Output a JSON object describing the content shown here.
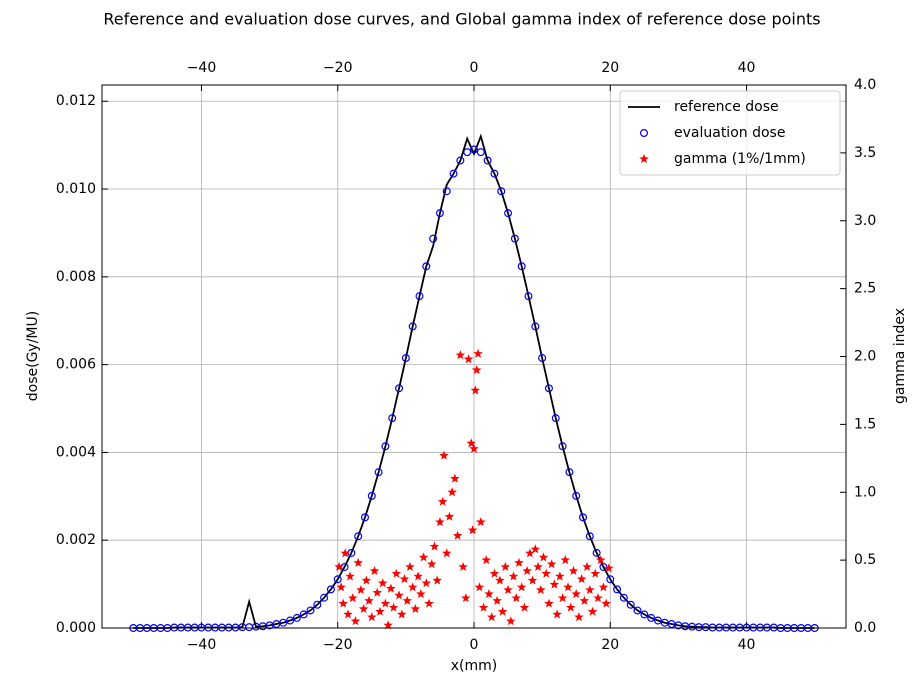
{
  "chart_data": {
    "type": "line",
    "title": "Reference and evaluation dose curves, and Global gamma index of reference dose points",
    "x_label": "x(mm)",
    "y_label": "dose(Gy/MU)",
    "y2_label": "gamma index",
    "xlim": [
      -54.6,
      54.6
    ],
    "xticks": [
      {
        "value": -40,
        "label": "−40"
      },
      {
        "value": -20,
        "label": "−20"
      },
      0,
      20,
      40
    ],
    "ylim": [
      0,
      0.01237
    ],
    "yticks": [
      {
        "value": 0,
        "label": "0.000"
      },
      {
        "value": 0.002,
        "label": "0.002"
      },
      {
        "value": 0.004,
        "label": "0.004"
      },
      {
        "value": 0.006,
        "label": "0.006"
      },
      {
        "value": 0.008,
        "label": "0.008"
      },
      {
        "value": 0.01,
        "label": "0.010"
      },
      {
        "value": 0.012,
        "label": "0.012"
      }
    ],
    "y2lim": [
      0,
      4
    ],
    "y2ticks": [
      {
        "value": 0,
        "label": "0.0"
      },
      {
        "value": 0.5,
        "label": "0.5"
      },
      {
        "value": 1,
        "label": "1.0"
      },
      {
        "value": 1.5,
        "label": "1.5"
      },
      {
        "value": 2,
        "label": "2.0"
      },
      {
        "value": 2.5,
        "label": "2.5"
      },
      {
        "value": 3,
        "label": "3.0"
      },
      {
        "value": 3.5,
        "label": "3.5"
      },
      {
        "value": 4,
        "label": "4.0"
      }
    ],
    "grid": true,
    "legend": "upper right",
    "x": [
      -50,
      -49,
      -48,
      -47,
      -46,
      -45,
      -44,
      -43,
      -42,
      -41,
      -40,
      -39,
      -38,
      -37,
      -36,
      -35,
      -34,
      -33,
      -32,
      -31,
      -30,
      -29,
      -28,
      -27,
      -26,
      -25,
      -24,
      -23,
      -22,
      -21,
      -20,
      -19,
      -18,
      -17,
      -16,
      -15,
      -14,
      -13,
      -12,
      -11,
      -10,
      -9,
      -8,
      -7,
      -6,
      -5,
      -4,
      -3,
      -2,
      -1,
      0,
      1,
      2,
      3,
      4,
      5,
      6,
      7,
      8,
      9,
      10,
      11,
      12,
      13,
      14,
      15,
      16,
      17,
      18,
      19,
      20,
      21,
      22,
      23,
      24,
      25,
      26,
      27,
      28,
      29,
      30,
      31,
      32,
      33,
      34,
      35,
      36,
      37,
      38,
      39,
      40,
      41,
      42,
      43,
      44,
      45,
      46,
      47,
      48,
      49,
      50
    ],
    "series": [
      {
        "name": "reference dose",
        "color": "#000000",
        "marker": "line",
        "values": [
          0,
          0,
          0,
          0,
          0,
          0,
          1e-05,
          1e-05,
          1e-05,
          1e-05,
          1e-05,
          1e-05,
          1e-05,
          1e-05,
          1e-05,
          1e-05,
          2e-05,
          0.0006,
          3e-05,
          4e-05,
          6e-05,
          9e-05,
          0.00012,
          0.00017,
          0.00023,
          0.00031,
          0.0004,
          0.00053,
          0.00069,
          0.00088,
          0.00111,
          0.00139,
          0.00171,
          0.00209,
          0.00252,
          0.00301,
          0.00355,
          0.00414,
          0.00478,
          0.00546,
          0.00615,
          0.00687,
          0.00756,
          0.00824,
          0.0087,
          0.00945,
          0.0101,
          0.01035,
          0.01065,
          0.01115,
          0.0108,
          0.0112,
          0.01065,
          0.01035,
          0.00995,
          0.00945,
          0.00887,
          0.00824,
          0.00756,
          0.00687,
          0.00615,
          0.00546,
          0.00478,
          0.00414,
          0.00355,
          0.00301,
          0.00252,
          0.00209,
          0.00171,
          0.00139,
          0.00111,
          0.00088,
          0.00069,
          0.00053,
          0.0004,
          0.00031,
          0.00023,
          0.00017,
          0.00012,
          9e-05,
          6e-05,
          4e-05,
          3e-05,
          2e-05,
          2e-05,
          1e-05,
          1e-05,
          1e-05,
          1e-05,
          1e-05,
          1e-05,
          1e-05,
          1e-05,
          1e-05,
          1e-05,
          0,
          0,
          0,
          0,
          0,
          0
        ]
      },
      {
        "name": "evaluation dose",
        "color": "#0000ff",
        "marker": "circle",
        "values": [
          0,
          0,
          0,
          0,
          0,
          0,
          1e-05,
          1e-05,
          1e-05,
          1e-05,
          1e-05,
          1e-05,
          1e-05,
          1e-05,
          1e-05,
          1e-05,
          2e-05,
          2e-05,
          3e-05,
          4e-05,
          6e-05,
          9e-05,
          0.00012,
          0.00017,
          0.00023,
          0.00031,
          0.0004,
          0.00053,
          0.00069,
          0.00088,
          0.00111,
          0.00139,
          0.00171,
          0.00209,
          0.00252,
          0.00301,
          0.00355,
          0.00414,
          0.00478,
          0.00546,
          0.00615,
          0.00687,
          0.00756,
          0.00824,
          0.00887,
          0.00945,
          0.00995,
          0.01035,
          0.01065,
          0.01084,
          0.0109,
          0.01084,
          0.01065,
          0.01035,
          0.00995,
          0.00945,
          0.00887,
          0.00824,
          0.00756,
          0.00687,
          0.00615,
          0.00546,
          0.00478,
          0.00414,
          0.00355,
          0.00301,
          0.00252,
          0.00209,
          0.00171,
          0.00139,
          0.00111,
          0.00088,
          0.00069,
          0.00053,
          0.0004,
          0.00031,
          0.00023,
          0.00017,
          0.00012,
          9e-05,
          6e-05,
          4e-05,
          3e-05,
          2e-05,
          2e-05,
          1e-05,
          1e-05,
          1e-05,
          1e-05,
          1e-05,
          1e-05,
          1e-05,
          1e-05,
          1e-05,
          1e-05,
          0,
          0,
          0,
          0,
          0,
          0
        ]
      },
      {
        "name": "gamma (1%/1mm)",
        "color": "#ff0000",
        "marker": "star",
        "axis": "y2",
        "x": [
          -19.8,
          -19.5,
          -19.2,
          -18.9,
          -18.5,
          -18.2,
          -17.8,
          -17.4,
          -17,
          -16.6,
          -16.2,
          -15.8,
          -15.4,
          -15,
          -14.6,
          -14.2,
          -13.8,
          -13.4,
          -13,
          -12.6,
          -12.2,
          -11.8,
          -11.4,
          -11,
          -10.6,
          -10.2,
          -9.8,
          -9.4,
          -9,
          -8.6,
          -8.2,
          -7.8,
          -7.4,
          -7,
          -6.6,
          -6.2,
          -5.8,
          -5.4,
          -5,
          -4.6,
          -4.4,
          -4,
          -3.6,
          -3.2,
          -2.8,
          -2.4,
          -2,
          -1.6,
          -1.2,
          -0.8,
          -0.4,
          -0.2,
          0,
          0.2,
          0.4,
          0.6,
          0.8,
          1,
          1.4,
          1.8,
          2.2,
          2.6,
          3,
          3.4,
          3.8,
          4.2,
          4.6,
          5,
          5.4,
          5.8,
          6.2,
          6.6,
          7,
          7.4,
          7.8,
          8.2,
          8.6,
          9,
          9.4,
          9.8,
          10.2,
          10.6,
          11,
          11.4,
          11.8,
          12.2,
          12.6,
          13,
          13.4,
          13.8,
          14.2,
          14.6,
          15,
          15.4,
          15.8,
          16.2,
          16.6,
          17,
          17.4,
          17.8,
          18.2,
          18.6,
          19,
          19.4,
          19.8
        ],
        "values": [
          0.45,
          0.3,
          0.18,
          0.55,
          0.1,
          0.38,
          0.22,
          0.05,
          0.48,
          0.28,
          0.14,
          0.35,
          0.2,
          0.08,
          0.42,
          0.26,
          0.12,
          0.33,
          0.18,
          0.02,
          0.29,
          0.15,
          0.4,
          0.24,
          0.1,
          0.36,
          0.2,
          0.45,
          0.3,
          0.14,
          0.38,
          0.25,
          0.52,
          0.33,
          0.18,
          0.47,
          0.6,
          0.35,
          0.78,
          0.93,
          1.27,
          0.55,
          0.82,
          1,
          1.1,
          0.68,
          2.01,
          0.45,
          0.22,
          1.98,
          1.36,
          0.72,
          1.32,
          1.75,
          1.9,
          2.02,
          0.3,
          0.78,
          0.15,
          0.5,
          0.25,
          0.08,
          0.4,
          0.2,
          0.35,
          0.12,
          0.45,
          0.28,
          0.05,
          0.38,
          0.22,
          0.48,
          0.3,
          0.15,
          0.42,
          0.55,
          0.35,
          0.58,
          0.45,
          0.28,
          0.52,
          0.4,
          0.18,
          0.47,
          0.32,
          0.1,
          0.38,
          0.22,
          0.5,
          0.3,
          0.15,
          0.42,
          0.25,
          0.08,
          0.36,
          0.2,
          0.45,
          0.28,
          0.12,
          0.4,
          0.22,
          0.5,
          0.3,
          0.18,
          0.44
        ]
      }
    ]
  }
}
